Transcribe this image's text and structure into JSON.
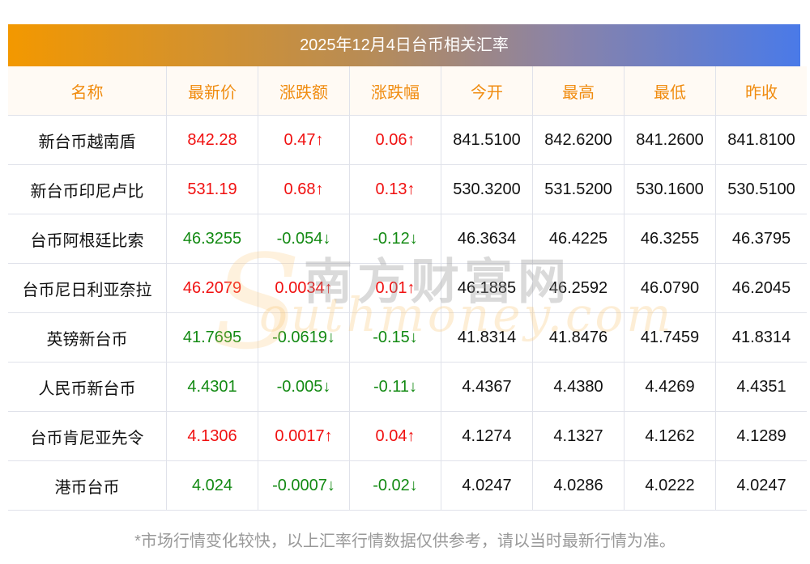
{
  "title": "2025年12月4日台币相关汇率",
  "headers": [
    "名称",
    "最新价",
    "涨跌额",
    "涨跌幅",
    "今开",
    "最高",
    "最低",
    "昨收"
  ],
  "rows": [
    {
      "name": "新台币越南盾",
      "price": "842.28",
      "change": "0.47↑",
      "pct": "0.06↑",
      "open": "841.5100",
      "high": "842.6200",
      "low": "841.2600",
      "prev": "841.8100",
      "dir": "up"
    },
    {
      "name": "新台币印尼卢比",
      "price": "531.19",
      "change": "0.68↑",
      "pct": "0.13↑",
      "open": "530.3200",
      "high": "531.5200",
      "low": "530.1600",
      "prev": "530.5100",
      "dir": "up"
    },
    {
      "name": "台币阿根廷比索",
      "price": "46.3255",
      "change": "-0.054↓",
      "pct": "-0.12↓",
      "open": "46.3634",
      "high": "46.4225",
      "low": "46.3255",
      "prev": "46.3795",
      "dir": "down"
    },
    {
      "name": "台币尼日利亚奈拉",
      "price": "46.2079",
      "change": "0.0034↑",
      "pct": "0.01↑",
      "open": "46.1885",
      "high": "46.2592",
      "low": "46.0790",
      "prev": "46.2045",
      "dir": "up"
    },
    {
      "name": "英镑新台币",
      "price": "41.7695",
      "change": "-0.0619↓",
      "pct": "-0.15↓",
      "open": "41.8314",
      "high": "41.8476",
      "low": "41.7459",
      "prev": "41.8314",
      "dir": "down"
    },
    {
      "name": "人民币新台币",
      "price": "4.4301",
      "change": "-0.005↓",
      "pct": "-0.11↓",
      "open": "4.4367",
      "high": "4.4380",
      "low": "4.4269",
      "prev": "4.4351",
      "dir": "down"
    },
    {
      "name": "台币肯尼亚先令",
      "price": "4.1306",
      "change": "0.0017↑",
      "pct": "0.04↑",
      "open": "4.1274",
      "high": "4.1327",
      "low": "4.1262",
      "prev": "4.1289",
      "dir": "up"
    },
    {
      "name": "港币台币",
      "price": "4.024",
      "change": "-0.0007↓",
      "pct": "-0.02↓",
      "open": "4.0247",
      "high": "4.0286",
      "low": "4.0222",
      "prev": "4.0247",
      "dir": "down"
    }
  ],
  "watermark": {
    "cn": "南方财富网",
    "en": "outhmoney.com",
    "s": "S"
  },
  "footer": "*市场行情变化较快，以上汇率行情数据仅供参考，请以当时最新行情为准。",
  "colors": {
    "up": "#f01010",
    "down": "#138a13",
    "header_text": "#f08c10"
  }
}
